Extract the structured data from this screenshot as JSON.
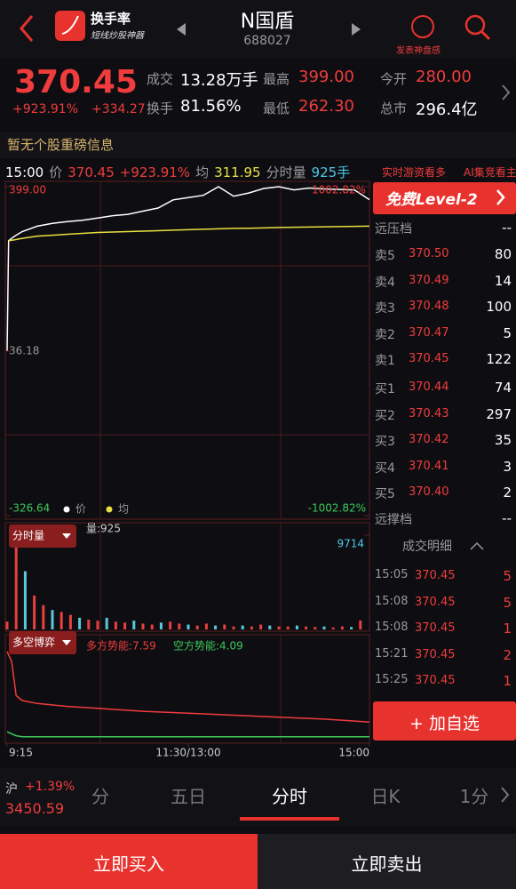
{
  "header": {
    "app_name": "换手率",
    "app_tagline": "短线炒股神器",
    "stock_name": "N国盾",
    "stock_code": "688027",
    "action": "发表神盘感"
  },
  "quote": {
    "price": "370.45",
    "change_pct": "+923.91%",
    "change": "+334.27",
    "fields": [
      {
        "label": "成交",
        "value": "13.28万手"
      },
      {
        "label": "最高",
        "value": "399.00"
      },
      {
        "label": "今开",
        "value": "280.00"
      },
      {
        "label": "换手",
        "value": "81.56%"
      },
      {
        "label": "最低",
        "value": "262.30"
      },
      {
        "label": "总市",
        "value": "296.4亿"
      }
    ]
  },
  "notice": "暂无个股重磅信息",
  "status_bar": {
    "time": "15:00",
    "price_label": "价",
    "price": "370.45",
    "pct": "+923.91%",
    "avg_label": "均",
    "avg": "311.95",
    "vol_label": "分时量",
    "vol": "925手",
    "ticker": [
      "实时游资看多",
      "AI集竞看主"
    ]
  },
  "chart_data": [
    {
      "type": "line",
      "xlim": [
        0,
        240
      ],
      "ylim": [
        -326.64,
        399.0
      ],
      "yticks": [
        {
          "value": 399.0,
          "label": "399.00"
        },
        {
          "value": 36.18,
          "label": "36.18"
        },
        {
          "value": -326.64,
          "label": "-326.64"
        }
      ],
      "y2lim": [
        -1002.82,
        1002.82
      ],
      "y2ticks": [
        {
          "value": 1002.82,
          "label": "1002.82%"
        },
        {
          "value": -1002.82,
          "label": "-1002.82%"
        }
      ],
      "x": [
        0,
        1,
        5,
        10,
        20,
        30,
        40,
        50,
        60,
        70,
        80,
        90,
        100,
        110,
        120,
        130,
        140,
        150,
        160,
        170,
        180,
        190,
        200,
        210,
        220,
        230,
        240
      ],
      "series": [
        {
          "name": "价",
          "color": "#ffffff",
          "values": [
            36.18,
            280,
            290,
            300,
            312,
            318,
            322,
            325,
            330,
            335,
            338,
            345,
            352,
            370,
            375,
            380,
            399,
            378,
            385,
            395,
            399,
            392,
            396,
            394,
            393,
            392,
            370.45
          ]
        },
        {
          "name": "均",
          "color": "#e8e040",
          "values": [
            null,
            280,
            282,
            285,
            290,
            292,
            294,
            296,
            298,
            299,
            300,
            301,
            302,
            303,
            304,
            305,
            306,
            307,
            307.5,
            308,
            309,
            309.5,
            310,
            310.5,
            311,
            311.5,
            311.95
          ]
        }
      ]
    },
    {
      "type": "bar",
      "title": "分时量",
      "subtitle": "量:925",
      "xlim": [
        0,
        240
      ],
      "ylim": [
        0,
        9714
      ],
      "yticks": [
        9714
      ],
      "color": "#e8403c",
      "x": [
        0,
        6,
        12,
        18,
        24,
        30,
        36,
        42,
        48,
        54,
        60,
        66,
        72,
        78,
        84,
        90,
        96,
        102,
        108,
        114,
        120,
        126,
        132,
        138,
        144,
        150,
        156,
        162,
        168,
        174,
        180,
        186,
        192,
        198,
        204,
        210,
        216,
        222,
        228,
        234
      ],
      "values": [
        800,
        9714,
        6000,
        3500,
        2500,
        2000,
        1800,
        1500,
        1200,
        1000,
        900,
        1200,
        800,
        700,
        900,
        600,
        500,
        700,
        800,
        600,
        500,
        400,
        600,
        400,
        500,
        300,
        400,
        300,
        500,
        400,
        300,
        300,
        400,
        300,
        250,
        300,
        200,
        300,
        250,
        925
      ]
    },
    {
      "type": "line",
      "title": "多空博弈",
      "xlim": [
        0,
        240
      ],
      "ylim": [
        0,
        100
      ],
      "xticks": [
        {
          "value": 0,
          "label": "9:15"
        },
        {
          "value": 120,
          "label": "11:30/13:00"
        },
        {
          "value": 240,
          "label": "15:00"
        }
      ],
      "x": [
        0,
        3,
        6,
        10,
        20,
        40,
        60,
        90,
        120,
        150,
        180,
        210,
        240
      ],
      "series": [
        {
          "name": "多方势能:7.59",
          "color": "#f03c3c",
          "values": [
            90,
            80,
            45,
            40,
            37,
            34,
            32,
            29,
            27,
            25,
            23,
            21,
            18
          ]
        },
        {
          "name": "空方势能:4.09",
          "color": "#3cc85a",
          "values": [
            8,
            6,
            4,
            3,
            3,
            3,
            3,
            3,
            3,
            3,
            3,
            3,
            3
          ]
        }
      ]
    }
  ],
  "order_book": {
    "level2_button": "免费Level-2",
    "far_ask": {
      "label": "远压档",
      "value": "--"
    },
    "asks": [
      {
        "label": "卖5",
        "price": "370.50",
        "volume": "80"
      },
      {
        "label": "卖4",
        "price": "370.49",
        "volume": "14"
      },
      {
        "label": "卖3",
        "price": "370.48",
        "volume": "100"
      },
      {
        "label": "卖2",
        "price": "370.47",
        "volume": "5"
      },
      {
        "label": "卖1",
        "price": "370.45",
        "volume": "122"
      }
    ],
    "bids": [
      {
        "label": "买1",
        "price": "370.44",
        "volume": "74"
      },
      {
        "label": "买2",
        "price": "370.43",
        "volume": "297"
      },
      {
        "label": "买3",
        "price": "370.42",
        "volume": "35"
      },
      {
        "label": "买4",
        "price": "370.41",
        "volume": "3"
      },
      {
        "label": "买5",
        "price": "370.40",
        "volume": "2"
      }
    ],
    "far_bid": {
      "label": "远撑档",
      "value": "--"
    },
    "trades_title": "成交明细",
    "trades": [
      {
        "time": "15:05",
        "price": "370.45",
        "volume": "5"
      },
      {
        "time": "15:08",
        "price": "370.45",
        "volume": "5"
      },
      {
        "time": "15:08",
        "price": "370.45",
        "volume": "1"
      },
      {
        "time": "15:21",
        "price": "370.45",
        "volume": "2"
      },
      {
        "time": "15:25",
        "price": "370.45",
        "volume": "1"
      }
    ],
    "add_button": "+ 加自选"
  },
  "footer": {
    "index": {
      "name": "沪",
      "change": "+1.39%",
      "value": "3450.59"
    },
    "tabs": [
      "分",
      "五日",
      "分时",
      "日K",
      "1分"
    ],
    "buy": "立即买入",
    "sell": "立即卖出"
  }
}
